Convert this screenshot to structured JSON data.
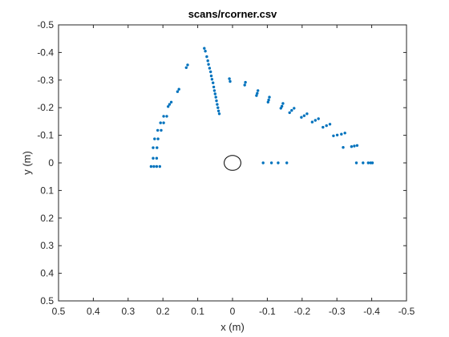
{
  "chart_data": {
    "type": "scatter",
    "title": "scans/rcorner.csv",
    "xlabel": "x (m)",
    "ylabel": "y (m)",
    "xlim": [
      0.5,
      -0.5
    ],
    "ylim": [
      -0.5,
      0.5
    ],
    "x_reversed": true,
    "y_reversed": true,
    "x_ticks": [
      0.5,
      0.4,
      0.3,
      0.2,
      0.1,
      0,
      -0.1,
      -0.2,
      -0.3,
      -0.4,
      -0.5
    ],
    "y_ticks": [
      -0.5,
      -0.4,
      -0.3,
      -0.2,
      -0.1,
      0,
      0.1,
      0.2,
      0.3,
      0.4,
      0.5
    ],
    "grid": false,
    "box": true,
    "colors": {
      "points": "#0072BD",
      "marker": "#000000",
      "axes": "#262626"
    },
    "robot_marker": {
      "shape": "ellipse",
      "x": 0,
      "y": 0,
      "rx": 0.024,
      "ry": 0.027
    },
    "series": [
      {
        "points": [
          [
            0.234,
            0.013
          ],
          [
            0.226,
            0.013
          ],
          [
            0.218,
            0.013
          ],
          [
            0.209,
            0.013
          ],
          [
            0.228,
            -0.017
          ],
          [
            0.218,
            -0.017
          ],
          [
            0.228,
            -0.055
          ],
          [
            0.217,
            -0.055
          ],
          [
            0.224,
            -0.087
          ],
          [
            0.214,
            -0.087
          ],
          [
            0.215,
            -0.118
          ],
          [
            0.205,
            -0.118
          ],
          [
            0.207,
            -0.145
          ],
          [
            0.198,
            -0.145
          ],
          [
            0.198,
            -0.169
          ],
          [
            0.189,
            -0.169
          ],
          [
            0.185,
            -0.204
          ],
          [
            0.181,
            -0.212
          ],
          [
            0.176,
            -0.22
          ],
          [
            0.158,
            -0.258
          ],
          [
            0.154,
            -0.267
          ],
          [
            0.133,
            -0.345
          ],
          [
            0.129,
            -0.355
          ],
          [
            0.081,
            -0.415
          ],
          [
            0.078,
            -0.405
          ],
          [
            0.074,
            -0.385
          ],
          [
            0.071,
            -0.37
          ],
          [
            0.069,
            -0.357
          ],
          [
            0.066,
            -0.343
          ],
          [
            0.063,
            -0.33
          ],
          [
            0.061,
            -0.315
          ],
          [
            0.059,
            -0.303
          ],
          [
            0.056,
            -0.29
          ],
          [
            0.054,
            -0.275
          ],
          [
            0.052,
            -0.262
          ],
          [
            0.05,
            -0.25
          ],
          [
            0.048,
            -0.238
          ],
          [
            0.046,
            -0.225
          ],
          [
            0.044,
            -0.212
          ],
          [
            0.042,
            -0.2
          ],
          [
            0.04,
            -0.188
          ],
          [
            0.038,
            -0.178
          ],
          [
            0.009,
            -0.305
          ],
          [
            0.007,
            -0.295
          ],
          [
            -0.037,
            -0.292
          ],
          [
            -0.035,
            -0.282
          ],
          [
            -0.073,
            -0.262
          ],
          [
            -0.071,
            -0.252
          ],
          [
            -0.069,
            -0.244
          ],
          [
            -0.106,
            -0.238
          ],
          [
            -0.104,
            -0.228
          ],
          [
            -0.102,
            -0.22
          ],
          [
            -0.145,
            -0.215
          ],
          [
            -0.142,
            -0.205
          ],
          [
            -0.139,
            -0.198
          ],
          [
            -0.177,
            -0.198
          ],
          [
            -0.17,
            -0.19
          ],
          [
            -0.164,
            -0.182
          ],
          [
            -0.214,
            -0.178
          ],
          [
            -0.206,
            -0.171
          ],
          [
            -0.198,
            -0.165
          ],
          [
            -0.247,
            -0.16
          ],
          [
            -0.238,
            -0.154
          ],
          [
            -0.229,
            -0.148
          ],
          [
            -0.28,
            -0.14
          ],
          [
            -0.27,
            -0.135
          ],
          [
            -0.26,
            -0.129
          ],
          [
            -0.323,
            -0.108
          ],
          [
            -0.313,
            -0.104
          ],
          [
            -0.301,
            -0.101
          ],
          [
            -0.29,
            -0.098
          ],
          [
            -0.358,
            -0.063
          ],
          [
            -0.35,
            -0.061
          ],
          [
            -0.342,
            -0.059
          ],
          [
            -0.318,
            -0.056
          ],
          [
            -0.088,
            0.0
          ],
          [
            -0.112,
            0.0
          ],
          [
            -0.131,
            0.0
          ],
          [
            -0.156,
            0.0
          ],
          [
            -0.356,
            0.0
          ],
          [
            -0.375,
            0.0
          ],
          [
            -0.39,
            0.0
          ],
          [
            -0.397,
            0.0
          ],
          [
            -0.402,
            0.0
          ]
        ]
      }
    ]
  }
}
